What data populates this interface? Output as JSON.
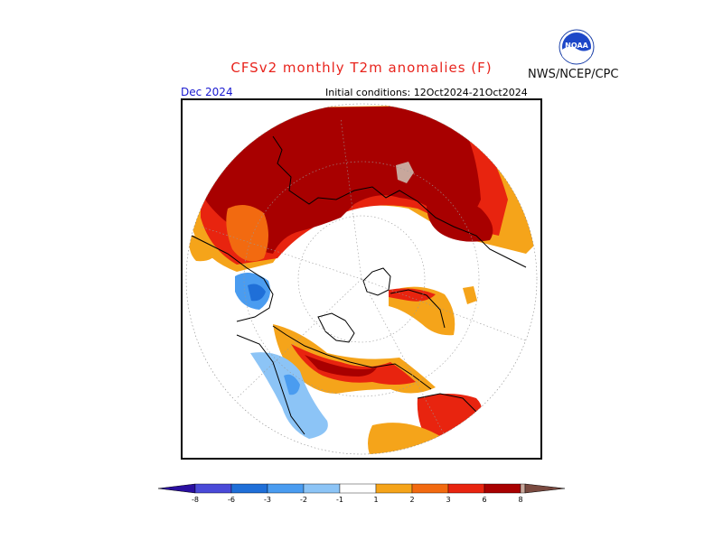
{
  "title": "CFSv2 monthly T2m anomalies (F)",
  "agency": "NWS/NCEP/CPC",
  "logo_text": "NOAA",
  "month_label": "Dec 2024",
  "initial_conditions": "Initial conditions: 12Oct2024-21Oct2024",
  "colors": {
    "lt_neg8": "#2a0fa0",
    "neg8_neg6": "#4a4ad8",
    "neg6_neg3": "#1f6fd8",
    "neg3_neg2": "#4a9cf0",
    "neg2_neg1": "#8cc4f6",
    "neg1_1": "#ffffff",
    "1_2": "#f5a41a",
    "2_3": "#f26a10",
    "3_6": "#e8240f",
    "6_8": "#a80000",
    "8_plus": "#c8a79c",
    "gt_8": "#7a4a40"
  },
  "colorbar": {
    "tick_labels": [
      "-8",
      "-6",
      "-3",
      "-2",
      "-1",
      "1",
      "2",
      "3",
      "6",
      "8"
    ]
  }
}
